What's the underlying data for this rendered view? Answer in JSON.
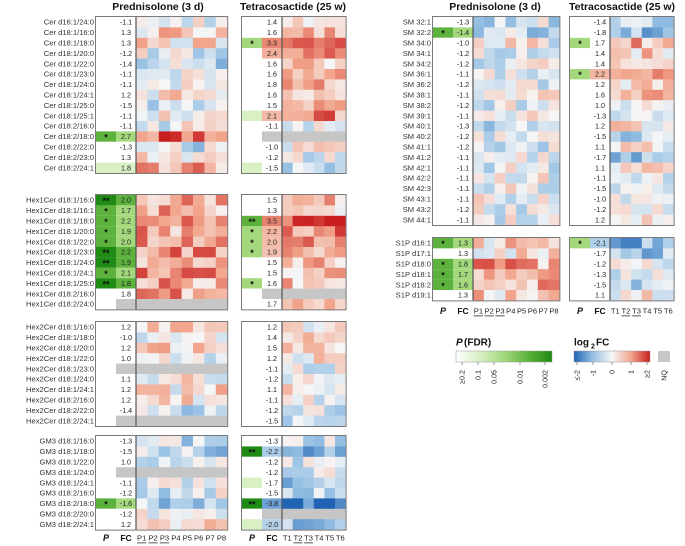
{
  "chart_data": {
    "type": "heatmap",
    "group_titles": [
      "Prednisolone (3 d)",
      "Tetracosactide (25 w)"
    ],
    "column_headers": {
      "left": {
        "pred": {
          "p": "P",
          "fc": "FC",
          "samples": [
            "P1",
            "P2",
            "P3",
            "P4",
            "P5",
            "P6",
            "P7",
            "P8"
          ]
        },
        "tetra": {
          "p": "P",
          "fc": "FC",
          "samples": [
            "T1",
            "T2",
            "T3",
            "T4",
            "T5",
            "T6"
          ]
        }
      },
      "right": {
        "pred": {
          "p": "P",
          "fc": "FC",
          "samples": [
            "P1",
            "P2",
            "P3",
            "P4",
            "P5",
            "P6",
            "P7",
            "P8"
          ]
        },
        "tetra": {
          "p": "P",
          "fc": "FC",
          "samples": [
            "T1",
            "T2",
            "T3",
            "T4",
            "T5",
            "T6"
          ]
        }
      }
    },
    "underlined_samples": [
      "P1",
      "P2",
      "P3",
      "T2",
      "T3"
    ],
    "blocks": [
      {
        "name": "Cer",
        "column": "left",
        "labels": [
          "Cer d16:1/24:0",
          "Cer d18:1/16:0",
          "Cer d18:1/18:0",
          "Cer d18:1/20:0",
          "Cer d18:1/22:0",
          "Cer d18:1/23:0",
          "Cer d18:1/24:0",
          "Cer d18:1/24:1",
          "Cer d18:1/25:0",
          "Cer d18:1/25:1",
          "Cer d18:2/16:0",
          "Cer d18:2/18:0",
          "Cer d18:2/22:0",
          "Cer d18:2/23:0",
          "Cer d18:2/24:1"
        ],
        "pred_sig": [
          "",
          "",
          "",
          "",
          "",
          "",
          "",
          "",
          "",
          "",
          "",
          "*",
          "",
          "",
          ""
        ],
        "pred_fc": [
          "-1.1",
          "1.3",
          "1.3",
          "-1.2",
          "-1.4",
          "-1.1",
          "-1.1",
          "1.2",
          "-1.5",
          "-1.1",
          "-1.1",
          "2.7",
          "-1.3",
          "1.3",
          "1.8"
        ],
        "pred_p_level": [
          0,
          0,
          0,
          0,
          0,
          0,
          0,
          0,
          0,
          0,
          0,
          3,
          0,
          0,
          1
        ],
        "tetra_sig": [
          "",
          "",
          "*",
          "",
          "",
          "",
          "",
          "",
          "",
          "",
          "",
          "",
          "",
          "",
          ""
        ],
        "tetra_fc": [
          "1.4",
          "1.6",
          "3.3",
          "2.4",
          "1.6",
          "1.6",
          "1.8",
          "1.6",
          "1.5",
          "2.1",
          "-1.1",
          "",
          "-1.0",
          "-1.2",
          "-1.5"
        ],
        "tetra_p_level": [
          0,
          0,
          2,
          0,
          0,
          0,
          0,
          0,
          0,
          1,
          0,
          0,
          0,
          0,
          1
        ]
      },
      {
        "name": "Hex1Cer",
        "column": "left",
        "labels": [
          "Hex1Cer d18:1/16:0",
          "Hex1Cer d18:1/16:1",
          "Hex1Cer d18:1/18:0",
          "Hex1Cer d18:1/20:0",
          "Hex1Cer d18:1/22:0",
          "Hex1Cer d18:1/23:0",
          "Hex1Cer d18:1/24:0",
          "Hex1Cer d18:1/24:1",
          "Hex1Cer d18:1/25:0",
          "Hex1Cer d18:2/16:0",
          "Hex1Cer d18:2/24:0"
        ],
        "pred_sig": [
          "**",
          "*",
          "*",
          "*",
          "*",
          "**",
          "**",
          "*",
          "**",
          "",
          ""
        ],
        "pred_fc": [
          "2.0",
          "1.7",
          "2.2",
          "1.9",
          "2.0",
          "2.2",
          "1.9",
          "2.1",
          "1.8",
          "1.8",
          ""
        ],
        "pred_p_level": [
          4,
          3,
          3,
          3,
          3,
          4,
          4,
          3,
          4,
          0,
          0
        ],
        "tetra_sig": [
          "",
          "",
          "**",
          "*",
          "*",
          "*",
          "",
          "",
          "*",
          "",
          ""
        ],
        "tetra_fc": [
          "1.5",
          "1.3",
          "3.5",
          "2.2",
          "2.0",
          "1.9",
          "1.5",
          "1.5",
          "1.6",
          "",
          "1.7"
        ],
        "tetra_p_level": [
          0,
          0,
          3,
          2,
          2,
          2,
          0,
          0,
          2,
          0,
          0
        ]
      },
      {
        "name": "Hex2Cer",
        "column": "left",
        "labels": [
          "Hex2Cer d18:1/16:0",
          "Hex2Cer d18:1/18:0",
          "Hex2Cer d18:1/20:0",
          "Hex2Cer d18:1/22:0",
          "Hex2Cer d18:1/23:0",
          "Hex2Cer d18:1/24:0",
          "Hex2Cer d18:1/24:1",
          "Hex2Cer d18:2/16:0",
          "Hex2Cer d18:2/22:0",
          "Hex2Cer d18:2/24:1"
        ],
        "pred_sig": [
          "",
          "",
          "",
          "",
          "",
          "",
          "",
          "",
          "",
          ""
        ],
        "pred_fc": [
          "1.2",
          "-1.0",
          "1.2",
          "1.0",
          "",
          "1.1",
          "1.2",
          "1.2",
          "-1.4",
          ""
        ],
        "pred_p_level": [
          0,
          0,
          0,
          0,
          0,
          0,
          0,
          0,
          0,
          0
        ],
        "tetra_sig": [
          "",
          "",
          "",
          "",
          "",
          "",
          "",
          "",
          "",
          ""
        ],
        "tetra_fc": [
          "1.2",
          "1.4",
          "1.5",
          "1.2",
          "-1.1",
          "-1.2",
          "1.1",
          "-1.1",
          "-1.2",
          "-1.5"
        ],
        "tetra_p_level": [
          0,
          0,
          0,
          0,
          0,
          0,
          0,
          0,
          0,
          0
        ]
      },
      {
        "name": "GM3",
        "column": "left",
        "labels": [
          "GM3 d18:1/16:0",
          "GM3 d18:1/18:0",
          "GM3 d18:1/22:0",
          "GM3 d18:1/24:0",
          "GM3 d18:1/24:1",
          "GM3 d18:2/16:0",
          "GM3 d18:2/18:0",
          "GM3 d18:2/20:0",
          "GM3 d18:2/24:1"
        ],
        "pred_sig": [
          "",
          "",
          "",
          "",
          "",
          "",
          "*",
          "",
          ""
        ],
        "pred_fc": [
          "-1.3",
          "-1.5",
          "1.0",
          "",
          "-1.1",
          "-1.2",
          "-1.6",
          "-1.2",
          "1.2"
        ],
        "pred_p_level": [
          0,
          0,
          0,
          0,
          0,
          0,
          3,
          0,
          0
        ],
        "tetra_sig": [
          "",
          "**",
          "",
          "",
          "",
          "",
          "**",
          "",
          ""
        ],
        "tetra_fc": [
          "-1.3",
          "-2.2",
          "-1.2",
          "-1.2",
          "-1.7",
          "-1.5",
          "-3.8",
          "",
          "-2.0"
        ],
        "tetra_p_level": [
          0,
          4,
          0,
          0,
          1,
          0,
          4,
          0,
          1
        ]
      },
      {
        "name": "SM",
        "column": "right",
        "labels": [
          "SM 32:1",
          "SM 32:2",
          "SM 34:0",
          "SM 34:1",
          "SM 34:2",
          "SM 36:1",
          "SM 36:2",
          "SM 38:1",
          "SM 38:2",
          "SM 39:1",
          "SM 40:1",
          "SM 40:2",
          "SM 41:1",
          "SM 41:2",
          "SM 42:1",
          "SM 42:2",
          "SM 42:3",
          "SM 43:1",
          "SM 43:2",
          "SM 44:1"
        ],
        "pred_sig": [
          "",
          "*",
          "",
          "",
          "",
          "",
          "",
          "",
          "",
          "",
          "",
          "",
          "",
          "",
          "",
          "",
          "",
          "",
          "",
          ""
        ],
        "pred_fc": [
          "-1.3",
          "-1.4",
          "-1.0",
          "-1.2",
          "-1.2",
          "-1.1",
          "-1.2",
          "-1.1",
          "-1.2",
          "-1.1",
          "-1.3",
          "-1.2",
          "-1.2",
          "-1.1",
          "-1.1",
          "-1.1",
          "-1.1",
          "-1.1",
          "-1.2",
          "-1.1"
        ],
        "pred_p_level": [
          0,
          3,
          0,
          0,
          0,
          0,
          0,
          0,
          0,
          0,
          0,
          0,
          0,
          0,
          0,
          0,
          0,
          0,
          0,
          0
        ],
        "tetra_sig": [
          "",
          "",
          "*",
          "",
          "",
          "*",
          "",
          "",
          "",
          "",
          "",
          "",
          "",
          "",
          "",
          "",
          "",
          "",
          "",
          ""
        ],
        "tetra_fc": [
          "-1.4",
          "-1.8",
          "1.7",
          "1.4",
          "1.4",
          "2.2",
          "1.2",
          "1.6",
          "1.0",
          "-1.3",
          "1.2",
          "-1.5",
          "1.1",
          "-1.7",
          "1.1",
          "-1.1",
          "-1.5",
          "-1.0",
          "-1.2",
          "1.2"
        ],
        "tetra_p_level": [
          0,
          0,
          2,
          0,
          0,
          2,
          0,
          0,
          0,
          0,
          0,
          0,
          0,
          0,
          0,
          0,
          0,
          0,
          0,
          0
        ]
      },
      {
        "name": "S1P",
        "column": "right",
        "labels": [
          "S1P d16:1",
          "S1P d17:1",
          "S1P d18:0",
          "S1P d18:1",
          "S1P d18:2",
          "S1P d19:1"
        ],
        "pred_sig": [
          "*",
          "",
          "*",
          "*",
          "*",
          ""
        ],
        "pred_fc": [
          "1.3",
          "1.3",
          "1.8",
          "1.7",
          "1.6",
          "1.3"
        ],
        "pred_p_level": [
          3,
          0,
          3,
          3,
          3,
          0
        ],
        "tetra_sig": [
          "*",
          "",
          "",
          "",
          "",
          ""
        ],
        "tetra_fc": [
          "-2.1",
          "-1.7",
          "-1.2",
          "-1.3",
          "-1.5",
          "1.1"
        ],
        "tetra_p_level": [
          2,
          0,
          0,
          0,
          0,
          0
        ]
      }
    ],
    "legend_p": {
      "title": "P (FDR)",
      "ticks": [
        "≥0.2",
        "0.1",
        "0.05",
        "0.01",
        "0.002"
      ],
      "colors": [
        "#ffffff",
        "#d8f0c4",
        "#a3d97c",
        "#5cb23c",
        "#1f8a14"
      ]
    },
    "legend_fc": {
      "title": "log2FC",
      "ticks": [
        "≤-2",
        "-1",
        "0",
        "1",
        "≥2"
      ],
      "colors": [
        "#1f63b2",
        "#97c1e4",
        "#f6f6f6",
        "#f2a58c",
        "#c81e1e"
      ]
    },
    "legend_nq": {
      "label": "NQ",
      "color": "#c6c6c6"
    }
  }
}
